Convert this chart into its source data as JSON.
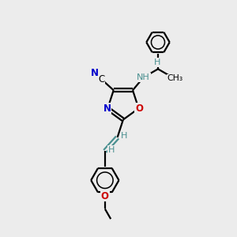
{
  "bg_color": "#ececec",
  "line_color": "#000000",
  "n_color": "#0000cc",
  "o_color": "#cc0000",
  "teal_color": "#4a9090",
  "bond_lw": 1.6,
  "fig_size": [
    3.0,
    3.0
  ],
  "dpi": 100,
  "xlim": [
    0,
    10
  ],
  "ylim": [
    0,
    10
  ]
}
